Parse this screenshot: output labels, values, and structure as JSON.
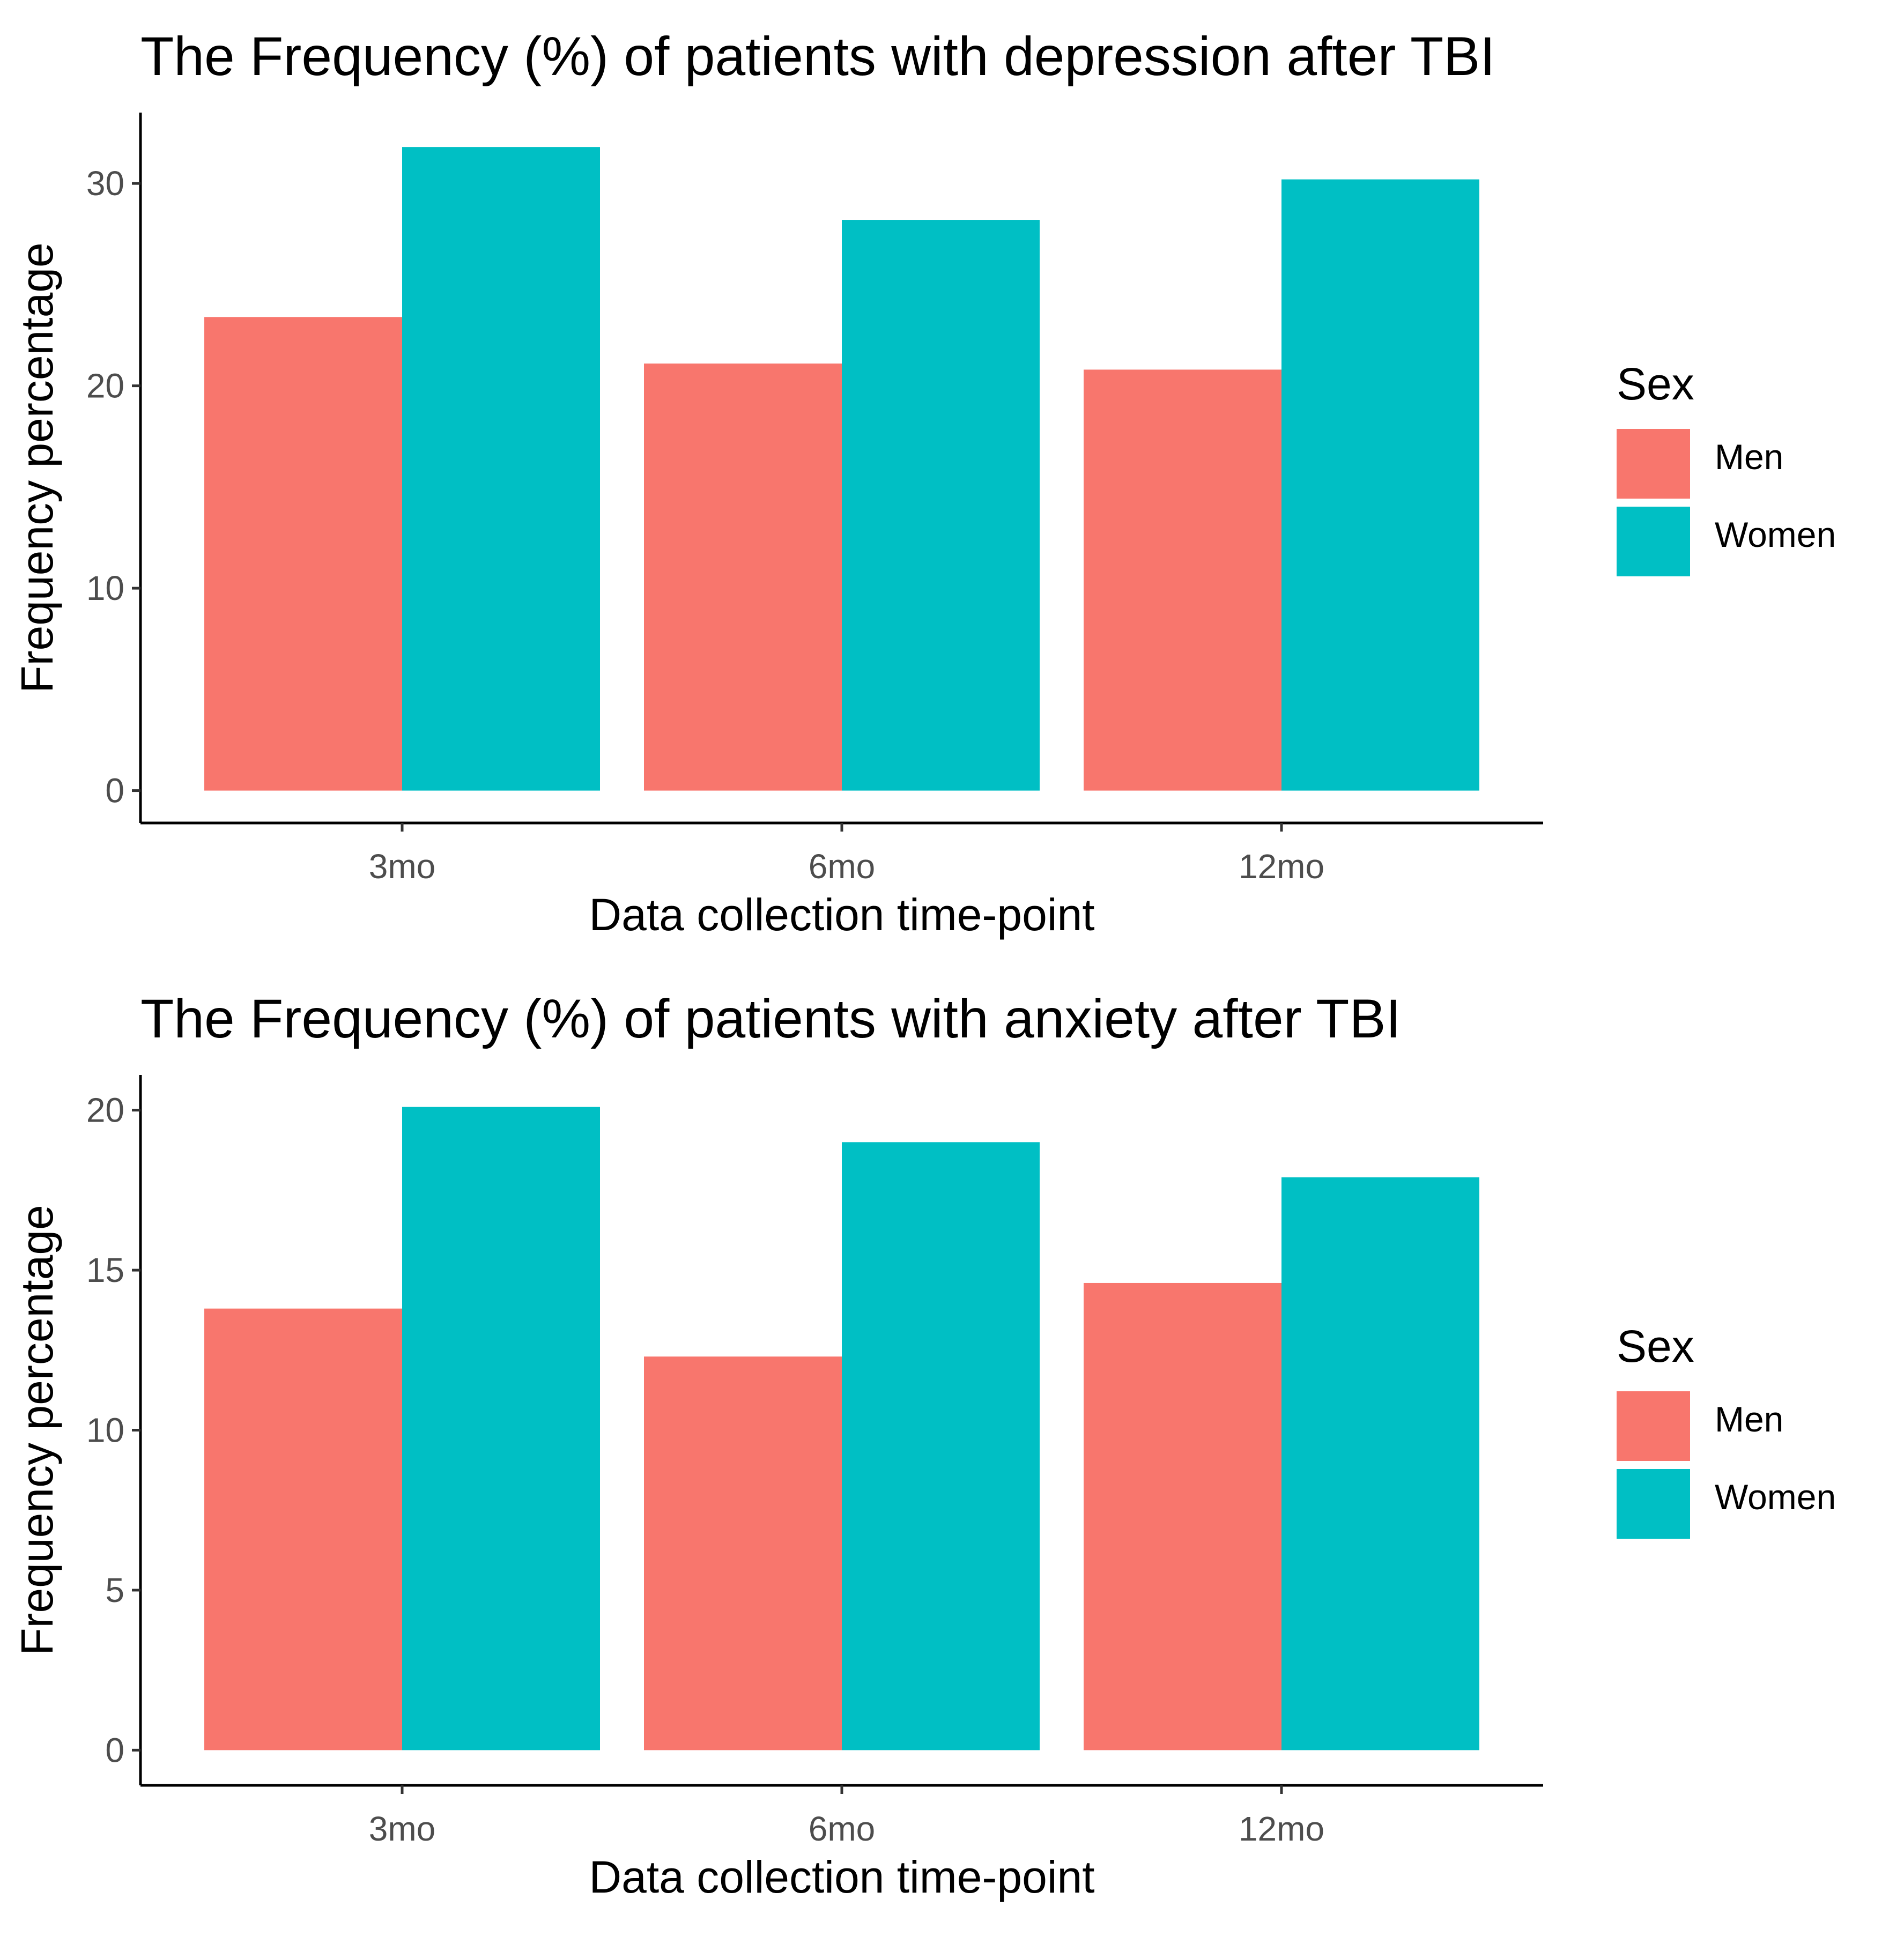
{
  "chart_data": [
    {
      "type": "bar",
      "title": "The Frequency (%) of patients with depression after TBI",
      "xlabel": "Data collection time-point",
      "ylabel": "Frequency percentage",
      "categories": [
        "3mo",
        "6mo",
        "12mo"
      ],
      "series": [
        {
          "name": "Men",
          "color": "#F8766D",
          "values": [
            23.4,
            21.1,
            20.8
          ]
        },
        {
          "name": "Women",
          "color": "#00BFC4",
          "values": [
            31.8,
            28.2,
            30.2
          ]
        }
      ],
      "yticks": [
        0,
        10,
        20,
        30
      ],
      "ytick_labels": [
        "0",
        "10",
        "20",
        "30"
      ],
      "ylim": [
        -1.6,
        33.5
      ],
      "legend_title": "Sex",
      "legend_position": "right",
      "grid": false
    },
    {
      "type": "bar",
      "title": "The Frequency (%) of patients with anxiety after TBI",
      "xlabel": "Data collection time-point",
      "ylabel": "Frequency percentage",
      "categories": [
        "3mo",
        "6mo",
        "12mo"
      ],
      "series": [
        {
          "name": "Men",
          "color": "#F8766D",
          "values": [
            13.8,
            12.3,
            14.6
          ]
        },
        {
          "name": "Women",
          "color": "#00BFC4",
          "values": [
            20.1,
            19.0,
            17.9
          ]
        }
      ],
      "yticks": [
        0,
        5,
        10,
        15,
        20
      ],
      "ytick_labels": [
        "0",
        "5",
        "10",
        "15",
        "20"
      ],
      "ylim": [
        -1.1,
        21.1
      ],
      "legend_title": "Sex",
      "legend_position": "right",
      "grid": false
    }
  ]
}
